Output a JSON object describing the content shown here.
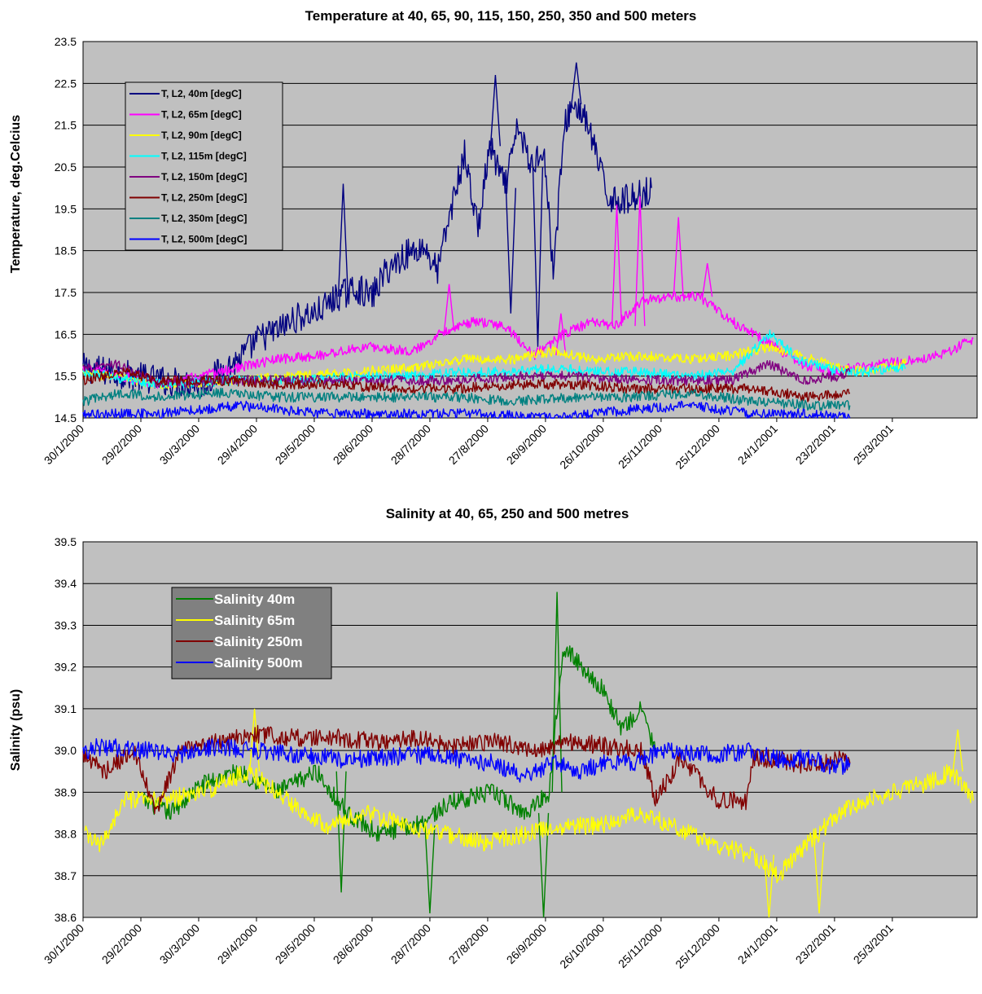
{
  "chart_data": [
    {
      "type": "line",
      "title": "Temperature at 40, 65, 90, 115, 150, 250, 350 and 500 meters",
      "ylabel": "Temperature, deg.Celcius",
      "xlabel": "",
      "ylim": [
        14.5,
        23.5
      ],
      "yticks": [
        "14.5",
        "15.5",
        "16.5",
        "17.5",
        "18.5",
        "19.5",
        "20.5",
        "21.5",
        "22.5",
        "23.5"
      ],
      "xlim": [
        "2000-01-30",
        "2001-05-08"
      ],
      "xticks": [
        "30/1/2000",
        "29/2/2000",
        "30/3/2000",
        "29/4/2000",
        "29/5/2000",
        "28/6/2000",
        "28/7/2000",
        "27/8/2000",
        "26/9/2000",
        "26/10/2000",
        "25/11/2000",
        "25/12/2000",
        "24/1/2001",
        "23/2/2001",
        "25/3/2001"
      ],
      "grid": true,
      "background": "#c0c0c0",
      "legend_position": "upper-left",
      "series": [
        {
          "name": "T, L2, 40m [degC]",
          "color": "#000080",
          "x": [
            "2000-01-30",
            "2000-03-10",
            "2000-04-01",
            "2000-04-10",
            "2000-04-20",
            "2000-04-30",
            "2000-05-10",
            "2000-05-20",
            "2000-05-30",
            "2000-06-10",
            "2000-06-20",
            "2000-06-28",
            "2000-07-05",
            "2000-07-15",
            "2000-07-25",
            "2000-08-01",
            "2000-08-08",
            "2000-08-15",
            "2000-08-22",
            "2000-08-28",
            "2000-09-05",
            "2000-09-12",
            "2000-09-18",
            "2000-09-25",
            "2000-09-30",
            "2000-10-06",
            "2000-10-10",
            "2000-10-15",
            "2000-10-20",
            "2000-10-28",
            "2000-11-05",
            "2000-11-12",
            "2000-11-20"
          ],
          "y": [
            15.7,
            15.4,
            15.3,
            15.6,
            15.9,
            16.4,
            16.6,
            16.9,
            17.0,
            17.4,
            17.6,
            17.4,
            18.0,
            18.4,
            18.6,
            18.0,
            19.5,
            20.8,
            19.0,
            21.0,
            20.0,
            21.5,
            20.5,
            21.0,
            18.0,
            21.5,
            22.0,
            21.8,
            21.2,
            19.8,
            19.7,
            19.8,
            20.0
          ],
          "spikes": [
            [
              "2000-06-13",
              20.1
            ],
            [
              "2000-08-31",
              22.7
            ],
            [
              "2000-10-12",
              23.0
            ],
            [
              "2000-09-22",
              16.2
            ],
            [
              "2000-09-08",
              17.0
            ]
          ]
        },
        {
          "name": "T, L2, 65m [degC]",
          "color": "#ff00ff",
          "x": [
            "2000-01-30",
            "2000-03-10",
            "2000-04-20",
            "2000-05-10",
            "2000-06-01",
            "2000-06-25",
            "2000-07-20",
            "2000-08-05",
            "2000-08-20",
            "2000-09-05",
            "2000-09-20",
            "2000-10-05",
            "2000-10-20",
            "2000-11-01",
            "2000-11-15",
            "2000-12-01",
            "2000-12-15",
            "2001-01-01",
            "2001-01-20",
            "2001-02-05",
            "2001-02-20",
            "2001-03-05",
            "2001-03-20",
            "2001-04-05",
            "2001-04-20",
            "2001-05-06"
          ],
          "y": [
            15.7,
            15.3,
            15.7,
            15.9,
            16.0,
            16.2,
            16.1,
            16.6,
            16.8,
            16.7,
            16.0,
            16.5,
            16.8,
            16.7,
            17.3,
            17.4,
            17.4,
            16.8,
            16.3,
            15.8,
            15.6,
            15.7,
            15.8,
            15.9,
            16.0,
            16.4
          ],
          "spikes": [
            [
              "2000-08-07",
              17.7
            ],
            [
              "2000-10-04",
              17.0
            ],
            [
              "2000-11-02",
              19.6
            ],
            [
              "2000-11-14",
              19.8
            ],
            [
              "2000-12-04",
              19.3
            ],
            [
              "2000-12-19",
              18.2
            ]
          ]
        },
        {
          "name": "T, L2, 90m [degC]",
          "color": "#ffff00",
          "x": [
            "2000-01-30",
            "2000-03-10",
            "2000-04-20",
            "2000-05-20",
            "2000-06-20",
            "2000-07-20",
            "2000-08-15",
            "2000-09-10",
            "2000-10-01",
            "2000-10-20",
            "2000-11-15",
            "2000-12-10",
            "2001-01-01",
            "2001-01-20",
            "2001-02-05",
            "2001-02-25",
            "2001-03-10",
            "2001-04-01"
          ],
          "y": [
            15.6,
            15.3,
            15.4,
            15.5,
            15.6,
            15.7,
            15.9,
            15.9,
            16.1,
            15.9,
            16.0,
            15.9,
            16.0,
            16.2,
            16.0,
            15.7,
            15.6,
            15.8
          ]
        },
        {
          "name": "T, L2, 115m [degC]",
          "color": "#00ffff",
          "x": [
            "2000-01-30",
            "2000-03-10",
            "2000-04-20",
            "2000-05-20",
            "2000-06-20",
            "2000-07-20",
            "2000-08-15",
            "2000-09-10",
            "2000-10-01",
            "2000-10-20",
            "2000-11-15",
            "2000-12-10",
            "2001-01-01",
            "2001-01-20",
            "2001-02-05",
            "2001-02-25",
            "2001-03-10",
            "2001-04-01"
          ],
          "y": [
            15.6,
            15.3,
            15.4,
            15.4,
            15.5,
            15.5,
            15.6,
            15.6,
            15.7,
            15.6,
            15.6,
            15.5,
            15.6,
            16.5,
            15.9,
            15.6,
            15.6,
            15.7
          ]
        },
        {
          "name": "T, L2, 150m [degC]",
          "color": "#800080",
          "x": [
            "2000-01-30",
            "2000-02-15",
            "2000-03-10",
            "2000-04-10",
            "2000-05-10",
            "2000-06-10",
            "2000-07-10",
            "2000-08-10",
            "2000-09-10",
            "2000-10-10",
            "2000-11-10",
            "2000-12-10",
            "2001-01-01",
            "2001-01-20",
            "2001-02-05",
            "2001-02-25",
            "2001-03-03"
          ],
          "y": [
            15.7,
            15.8,
            15.3,
            15.4,
            15.4,
            15.4,
            15.4,
            15.4,
            15.5,
            15.5,
            15.4,
            15.4,
            15.4,
            15.8,
            15.4,
            15.5,
            15.6
          ]
        },
        {
          "name": "T, L2, 250m [degC]",
          "color": "#800000",
          "x": [
            "2000-01-30",
            "2000-02-20",
            "2000-03-10",
            "2000-04-10",
            "2000-05-10",
            "2000-06-10",
            "2000-07-10",
            "2000-08-10",
            "2000-09-10",
            "2000-10-10",
            "2000-11-10",
            "2000-12-10",
            "2001-01-10",
            "2001-02-10",
            "2001-03-03"
          ],
          "y": [
            15.4,
            15.6,
            15.4,
            15.4,
            15.3,
            15.3,
            15.2,
            15.2,
            15.3,
            15.3,
            15.2,
            15.2,
            15.2,
            15.0,
            15.1
          ]
        },
        {
          "name": "T, L2, 350m [degC]",
          "color": "#008080",
          "x": [
            "2000-01-30",
            "2000-02-20",
            "2000-03-10",
            "2000-04-10",
            "2000-05-10",
            "2000-06-10",
            "2000-07-10",
            "2000-08-10",
            "2000-09-10",
            "2000-10-10",
            "2000-11-10",
            "2000-12-10",
            "2001-01-10",
            "2001-02-10",
            "2001-03-03"
          ],
          "y": [
            14.9,
            15.1,
            15.0,
            15.1,
            15.0,
            15.0,
            15.0,
            15.0,
            14.9,
            15.0,
            15.0,
            15.1,
            14.9,
            14.8,
            14.8
          ]
        },
        {
          "name": "T, L2, 500m [degC]",
          "color": "#0000ff",
          "x": [
            "2000-01-30",
            "2000-03-10",
            "2000-04-20",
            "2000-06-01",
            "2000-07-10",
            "2000-08-20",
            "2000-10-01",
            "2000-11-10",
            "2000-12-10",
            "2001-01-10",
            "2001-02-10",
            "2001-03-03"
          ],
          "y": [
            14.6,
            14.6,
            14.8,
            14.6,
            14.6,
            14.6,
            14.5,
            14.7,
            14.8,
            14.6,
            14.6,
            14.5
          ]
        }
      ]
    },
    {
      "type": "line",
      "title": "Salinity at 40, 65,  250 and 500 metres",
      "ylabel": "Salinity (psu)",
      "xlabel": "",
      "ylim": [
        38.6,
        39.5
      ],
      "yticks": [
        "38.6",
        "38.7",
        "38.8",
        "38.9",
        "39.0",
        "39.1",
        "39.2",
        "39.3",
        "39.4",
        "39.5"
      ],
      "xlim": [
        "2000-01-30",
        "2001-05-08"
      ],
      "xticks": [
        "30/1/2000",
        "29/2/2000",
        "30/3/2000",
        "29/4/2000",
        "29/5/2000",
        "28/6/2000",
        "28/7/2000",
        "27/8/2000",
        "26/9/2000",
        "26/10/2000",
        "25/11/2000",
        "25/12/2000",
        "24/1/2001",
        "23/2/2001",
        "25/3/2001"
      ],
      "grid": true,
      "background": "#c0c0c0",
      "legend_position": "upper-left",
      "series": [
        {
          "name": "Salinity 40m",
          "color": "#008000",
          "x": [
            "2000-03-01",
            "2000-03-15",
            "2000-04-01",
            "2000-04-20",
            "2000-05-10",
            "2000-05-30",
            "2000-06-15",
            "2000-07-01",
            "2000-07-20",
            "2000-08-10",
            "2000-08-30",
            "2000-09-15",
            "2000-09-28",
            "2000-10-05",
            "2000-10-15",
            "2000-10-25",
            "2000-11-05",
            "2000-11-15",
            "2000-11-22"
          ],
          "y": [
            38.88,
            38.85,
            38.92,
            38.95,
            38.9,
            38.95,
            38.85,
            38.8,
            38.82,
            38.88,
            38.9,
            38.85,
            38.9,
            39.25,
            39.2,
            39.15,
            39.05,
            39.1,
            39.0
          ],
          "spikes": [
            [
              "2000-10-02",
              39.38
            ],
            [
              "2000-09-25",
              38.6
            ],
            [
              "2000-07-28",
              38.61
            ],
            [
              "2000-06-12",
              38.66
            ]
          ]
        },
        {
          "name": "Salinity 65m",
          "color": "#ffff00",
          "x": [
            "2000-01-31",
            "2000-02-08",
            "2000-02-20",
            "2000-03-10",
            "2000-04-01",
            "2000-04-25",
            "2000-05-15",
            "2000-06-05",
            "2000-06-25",
            "2000-07-15",
            "2000-08-05",
            "2000-08-25",
            "2000-09-15",
            "2000-10-05",
            "2000-10-25",
            "2000-11-15",
            "2000-12-01",
            "2000-12-20",
            "2001-01-10",
            "2001-01-25",
            "2001-02-10",
            "2001-02-25",
            "2001-03-10",
            "2001-03-25",
            "2001-04-10",
            "2001-04-25",
            "2001-05-06"
          ],
          "y": [
            38.8,
            38.77,
            38.88,
            38.88,
            38.9,
            38.95,
            38.88,
            38.82,
            38.85,
            38.82,
            38.8,
            38.78,
            38.8,
            38.82,
            38.82,
            38.85,
            38.82,
            38.78,
            38.75,
            38.7,
            38.78,
            38.85,
            38.88,
            38.9,
            38.92,
            38.95,
            38.88
          ],
          "spikes": [
            [
              "2000-04-28",
              39.1
            ],
            [
              "2001-01-20",
              38.6
            ],
            [
              "2001-02-15",
              38.61
            ],
            [
              "2001-04-28",
              39.05
            ]
          ]
        },
        {
          "name": "Salinity 250m",
          "color": "#800000",
          "x": [
            "2000-01-30",
            "2000-02-10",
            "2000-02-25",
            "2000-03-08",
            "2000-03-20",
            "2000-04-10",
            "2000-05-01",
            "2000-05-20",
            "2000-06-10",
            "2000-07-01",
            "2000-07-20",
            "2000-08-10",
            "2000-09-01",
            "2000-09-20",
            "2000-10-10",
            "2000-10-30",
            "2000-11-15",
            "2000-11-22",
            "2000-12-05",
            "2000-12-15",
            "2000-12-25",
            "2001-01-08",
            "2001-01-12",
            "2001-01-25",
            "2001-02-10",
            "2001-02-25",
            "2001-03-03"
          ],
          "y": [
            38.99,
            38.95,
            39.0,
            38.85,
            39.0,
            39.02,
            39.04,
            39.03,
            39.03,
            39.02,
            39.03,
            39.01,
            39.02,
            39.0,
            39.02,
            39.01,
            39.0,
            38.88,
            38.98,
            38.93,
            38.88,
            38.88,
            38.98,
            38.98,
            38.96,
            38.98,
            38.97
          ]
        },
        {
          "name": "Salinity 500m",
          "color": "#0000ff",
          "x": [
            "2000-01-30",
            "2000-02-10",
            "2000-03-01",
            "2000-03-20",
            "2000-04-10",
            "2000-05-01",
            "2000-05-20",
            "2000-06-10",
            "2000-07-01",
            "2000-07-20",
            "2000-08-10",
            "2000-08-30",
            "2000-09-15",
            "2000-09-30",
            "2000-10-15",
            "2000-10-25",
            "2000-11-10",
            "2000-11-25",
            "2000-12-10",
            "2000-12-25",
            "2001-01-10",
            "2001-01-25",
            "2001-02-10",
            "2001-02-25",
            "2001-03-03"
          ],
          "y": [
            39.0,
            39.01,
            39.0,
            38.99,
            39.01,
            39.0,
            38.99,
            38.98,
            38.98,
            38.99,
            38.98,
            38.97,
            38.94,
            38.97,
            38.95,
            38.97,
            38.97,
            39.0,
            38.99,
            38.99,
            39.0,
            38.98,
            38.98,
            38.96,
            38.97
          ]
        }
      ]
    }
  ]
}
